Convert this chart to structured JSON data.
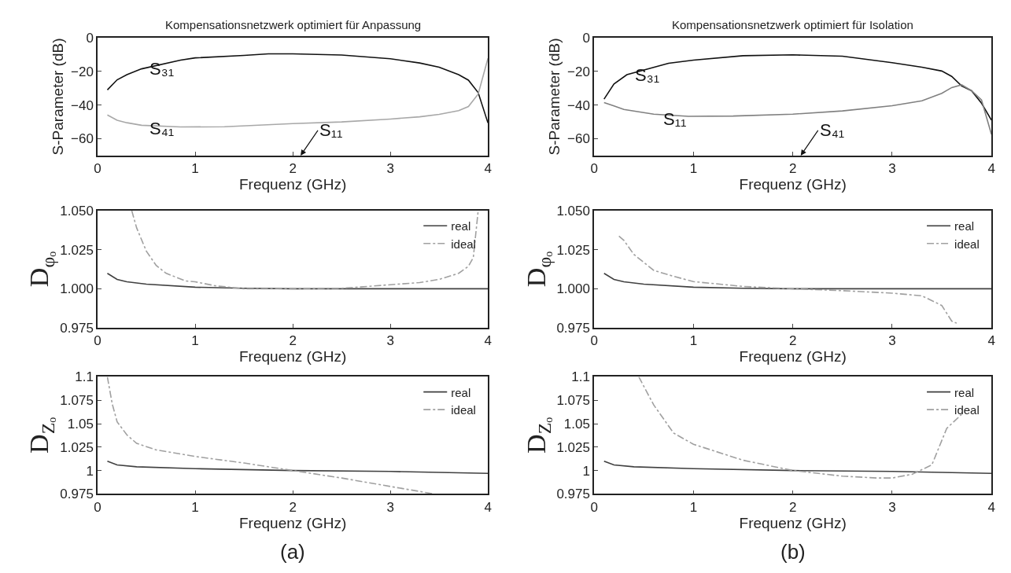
{
  "chart_data": [
    {
      "type": "line",
      "title": "Kompensationsnetzwerk optimiert für Anpassung",
      "xlabel": "Frequenz (GHz)",
      "ylabel": "S-Parameter (dB)",
      "xlim": [
        0,
        4
      ],
      "xticks": [
        0,
        1,
        2,
        3,
        4
      ],
      "ylim": [
        -70,
        0
      ],
      "yticks": [
        0,
        {
          "value": -20,
          "label": "−20"
        },
        {
          "value": -40,
          "label": "−40"
        },
        {
          "value": -60,
          "label": "−60"
        }
      ],
      "legend": false,
      "series": [
        {
          "name": "S₃₁",
          "color": "#111111",
          "line_style": "solid",
          "x": [
            0.1,
            0.2,
            0.3,
            0.45,
            0.85,
            1.0,
            1.5,
            1.75,
            2.0,
            2.5,
            3.0,
            3.3,
            3.5,
            3.7,
            3.8,
            3.9,
            4.0
          ],
          "values": [
            -31,
            -25,
            -22,
            -18.5,
            -13.3,
            -12,
            -10.5,
            -9.6,
            -9.6,
            -10.3,
            -12.5,
            -15,
            -17.5,
            -22,
            -25.2,
            -32.6,
            -50.6
          ]
        },
        {
          "name": "S₄₁",
          "color": "#a8a8a8",
          "line_style": "solid",
          "x": [
            0.1,
            0.2,
            0.3,
            0.45,
            0.85,
            1.3,
            2.0,
            2.5,
            3.0,
            3.3,
            3.5,
            3.7,
            3.8,
            3.9,
            4.0
          ],
          "values": [
            -45.9,
            -49,
            -50.5,
            -52,
            -53,
            -52.9,
            -51,
            -50,
            -48.3,
            -47,
            -45.5,
            -43.3,
            -40.9,
            -33.5,
            -12.3
          ]
        }
      ],
      "annotations": [
        "S₁₁"
      ]
    },
    {
      "type": "line",
      "title": "Kompensationsnetzwerk optimiert für Isolation",
      "xlabel": "Frequenz (GHz)",
      "ylabel": "S-Parameter (dB)",
      "xlim": [
        0,
        4
      ],
      "xticks": [
        0,
        1,
        2,
        3,
        4
      ],
      "ylim": [
        -70,
        0
      ],
      "yticks": [
        0,
        {
          "value": -20,
          "label": "−20"
        },
        {
          "value": -40,
          "label": "−40"
        },
        {
          "value": -60,
          "label": "−60"
        }
      ],
      "legend": false,
      "series": [
        {
          "name": "S₃₁",
          "color": "#111111",
          "line_style": "solid",
          "x": [
            0.1,
            0.2,
            0.33,
            0.75,
            1.0,
            1.5,
            2.0,
            2.5,
            3.0,
            3.3,
            3.5,
            3.6,
            3.7,
            3.8,
            3.9,
            4.0
          ],
          "values": [
            -36.5,
            -27.5,
            -22,
            -15.2,
            -13.3,
            -10.7,
            -10.2,
            -11,
            -14.8,
            -17.5,
            -19.8,
            -23,
            -28.7,
            -31.5,
            -38.9,
            -49
          ]
        },
        {
          "name": "S₁₁",
          "color": "#808080",
          "line_style": "solid",
          "x": [
            0.1,
            0.2,
            0.3,
            0.6,
            0.95,
            1.4,
            2.0,
            2.5,
            3.0,
            3.3,
            3.5,
            3.6,
            3.7,
            3.8,
            3.9,
            4.0
          ],
          "values": [
            -38.5,
            -40.5,
            -42.6,
            -45.4,
            -46.7,
            -46.5,
            -45.4,
            -43.5,
            -40.4,
            -37.5,
            -33,
            -29.6,
            -28,
            -31.5,
            -37,
            -57.4
          ]
        }
      ],
      "annotations": [
        "S₄₁"
      ]
    },
    {
      "type": "line",
      "ylabel": "D$_{φₒ}$",
      "xlabel": "Frequenz (GHz)",
      "xlim": [
        0,
        4
      ],
      "xticks": [
        0,
        1,
        2,
        3,
        4
      ],
      "ylim": [
        0.975,
        1.05
      ],
      "yticks": [
        0.975,
        {
          "value": 1.0,
          "label": "1.000"
        },
        1.025,
        {
          "value": 1.05,
          "label": "1.050"
        }
      ],
      "legend": "top right",
      "series": [
        {
          "name": "real",
          "color": "#404040",
          "line_style": "solid",
          "x": [
            0.1,
            0.2,
            0.3,
            0.5,
            1.0,
            1.5,
            2.0,
            3.0,
            4.0
          ],
          "values": [
            1.0099,
            1.006,
            1.0045,
            1.003,
            1.001,
            1.0003,
            1.0,
            1.0,
            1.0
          ]
        },
        {
          "name": "ideal",
          "color": "#a0a0a0",
          "line_style": "dashdot",
          "x": [
            0.35,
            0.4,
            0.5,
            0.6,
            0.7,
            0.9,
            1.0,
            1.2,
            1.5,
            2.0,
            2.5,
            3.0,
            3.3,
            3.5,
            3.7,
            3.8,
            3.85,
            3.9
          ],
          "values": [
            1.05,
            1.039,
            1.024,
            1.015,
            1.01,
            1.005,
            1.0045,
            1.002,
            1.0,
            1.0,
            1.0003,
            1.0026,
            1.004,
            1.006,
            1.0099,
            1.0144,
            1.02,
            1.05
          ]
        }
      ]
    },
    {
      "type": "line",
      "ylabel": "D$_{φₒ}$",
      "xlabel": "Frequenz (GHz)",
      "xlim": [
        0,
        4
      ],
      "xticks": [
        0,
        1,
        2,
        3,
        4
      ],
      "ylim": [
        0.975,
        1.05
      ],
      "yticks": [
        0.975,
        {
          "value": 1.0,
          "label": "1.000"
        },
        1.025,
        {
          "value": 1.05,
          "label": "1.050"
        }
      ],
      "legend": "top right",
      "series": [
        {
          "name": "real",
          "color": "#404040",
          "line_style": "solid",
          "x": [
            0.1,
            0.2,
            0.3,
            0.5,
            1.0,
            1.5,
            2.0,
            3.0,
            4.0
          ],
          "values": [
            1.0099,
            1.006,
            1.0045,
            1.003,
            1.001,
            1.0003,
            1.0,
            1.0,
            1.0
          ]
        },
        {
          "name": "ideal",
          "color": "#a0a0a0",
          "line_style": "dashdot",
          "x": [
            0.25,
            0.3,
            0.4,
            0.6,
            0.8,
            1.0,
            1.5,
            2.0,
            2.5,
            3.0,
            3.3,
            3.5,
            3.6,
            3.65
          ],
          "values": [
            1.0337,
            1.031,
            1.022,
            1.0118,
            1.008,
            1.0046,
            1.0015,
            1.0,
            0.9988,
            0.9972,
            0.9955,
            0.9893,
            0.9793,
            0.978
          ]
        }
      ]
    },
    {
      "type": "line",
      "ylabel": "D$_{Zₒ}$",
      "xlabel": "Frequenz (GHz)",
      "xlim": [
        0,
        4
      ],
      "xticks": [
        0,
        1,
        2,
        3,
        4
      ],
      "ylim": [
        0.975,
        1.1
      ],
      "yticks": [
        0.975,
        1,
        1.025,
        1.05,
        1.075,
        1.1
      ],
      "legend": "top right",
      "series": [
        {
          "name": "real",
          "color": "#404040",
          "line_style": "solid",
          "x": [
            0.1,
            0.2,
            0.4,
            1.0,
            2.0,
            3.0,
            4.0
          ],
          "values": [
            1.01,
            1.006,
            1.004,
            1.002,
            1.0,
            0.999,
            0.997
          ]
        },
        {
          "name": "ideal",
          "color": "#a0a0a0",
          "line_style": "dashdot",
          "x": [
            0.1,
            0.15,
            0.2,
            0.3,
            0.4,
            0.6,
            1.0,
            1.5,
            2.0,
            2.5,
            3.0,
            3.45
          ],
          "values": [
            1.1,
            1.071,
            1.052,
            1.038,
            1.029,
            1.022,
            1.015,
            1.008,
            1.0,
            0.992,
            0.983,
            0.975
          ]
        }
      ],
      "annotations": [
        "(a)"
      ]
    },
    {
      "type": "line",
      "ylabel": "D$_{Zₒ}$",
      "xlabel": "Frequenz (GHz)",
      "xlim": [
        0,
        4
      ],
      "xticks": [
        0,
        1,
        2,
        3,
        4
      ],
      "ylim": [
        0.975,
        1.1
      ],
      "yticks": [
        0.975,
        1,
        1.025,
        1.05,
        1.075,
        1.1
      ],
      "legend": "top right",
      "series": [
        {
          "name": "real",
          "color": "#404040",
          "line_style": "solid",
          "x": [
            0.1,
            0.2,
            0.4,
            1.0,
            2.0,
            3.0,
            4.0
          ],
          "values": [
            1.01,
            1.006,
            1.004,
            1.002,
            1.0,
            0.999,
            0.997
          ]
        },
        {
          "name": "ideal",
          "color": "#a0a0a0",
          "line_style": "dashdot",
          "x": [
            0.45,
            0.6,
            0.8,
            1.0,
            1.5,
            2.0,
            2.5,
            2.85,
            3.0,
            3.2,
            3.4,
            3.55,
            3.7
          ],
          "values": [
            1.1,
            1.07,
            1.04,
            1.028,
            1.011,
            1.0,
            0.994,
            0.992,
            0.992,
            0.996,
            1.006,
            1.045,
            1.06
          ]
        }
      ],
      "annotations": [
        "(b)"
      ]
    }
  ]
}
